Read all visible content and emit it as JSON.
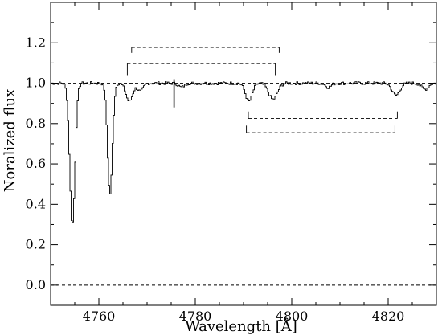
{
  "chart_data": {
    "type": "line",
    "title": "",
    "xlabel": "Wavelength [Å]",
    "ylabel": "Noralized flux",
    "xlim": [
      4750,
      4830
    ],
    "ylim": [
      -0.1,
      1.4
    ],
    "xticks": [
      4760,
      4780,
      4800,
      4820
    ],
    "xtick_labels": [
      "4760",
      "4780",
      "4800",
      "4820"
    ],
    "yticks": [
      0.0,
      0.2,
      0.4,
      0.6,
      0.8,
      1.0,
      1.2
    ],
    "ytick_labels": [
      "0.0",
      "0.2",
      "0.4",
      "0.6",
      "0.8",
      "1.0",
      "1.2"
    ],
    "grid": false,
    "reference_lines": [
      {
        "name": "continuum",
        "y": 1.0,
        "style": "dashed"
      },
      {
        "name": "zero",
        "y": 0.0,
        "style": "dashed"
      }
    ],
    "marker_line": {
      "x": 4775.6,
      "y_from": 0.88,
      "y_to": 1.02
    },
    "brackets": [
      {
        "x1": 4766.8,
        "x2": 4797.4,
        "y": 1.177,
        "tick_to": 1.15,
        "style": "dashed"
      },
      {
        "x1": 4765.9,
        "x2": 4796.6,
        "y": 1.097,
        "tick_to": 1.04,
        "style": "dashed"
      },
      {
        "x1": 4791.0,
        "x2": 4821.9,
        "y": 0.825,
        "tick_to": 0.86,
        "style": "dashed"
      },
      {
        "x1": 4790.6,
        "x2": 4821.4,
        "y": 0.755,
        "tick_to": 0.79,
        "style": "dashed"
      }
    ],
    "series": [
      {
        "profile": {
          "x_start": 4750.0,
          "x_end": 4830.0,
          "step": 0.25,
          "baseline": 1.0,
          "noise_amplitude": 0.008,
          "absorption_lines": [
            {
              "center": 4754.4,
              "depth": 0.7,
              "width": 0.55
            },
            {
              "center": 4762.2,
              "depth": 0.55,
              "width": 0.5
            },
            {
              "center": 4766.2,
              "depth": 0.09,
              "width": 0.7
            },
            {
              "center": 4768.5,
              "depth": 0.04,
              "width": 0.6
            },
            {
              "center": 4777.0,
              "depth": 0.02,
              "width": 0.6
            },
            {
              "center": 4791.0,
              "depth": 0.09,
              "width": 0.7
            },
            {
              "center": 4796.0,
              "depth": 0.08,
              "width": 0.9
            },
            {
              "center": 4821.5,
              "depth": 0.06,
              "width": 0.8
            },
            {
              "center": 4807.5,
              "depth": 0.02,
              "width": 0.6
            },
            {
              "center": 4827.5,
              "depth": 0.03,
              "width": 0.7
            }
          ]
        }
      }
    ]
  }
}
